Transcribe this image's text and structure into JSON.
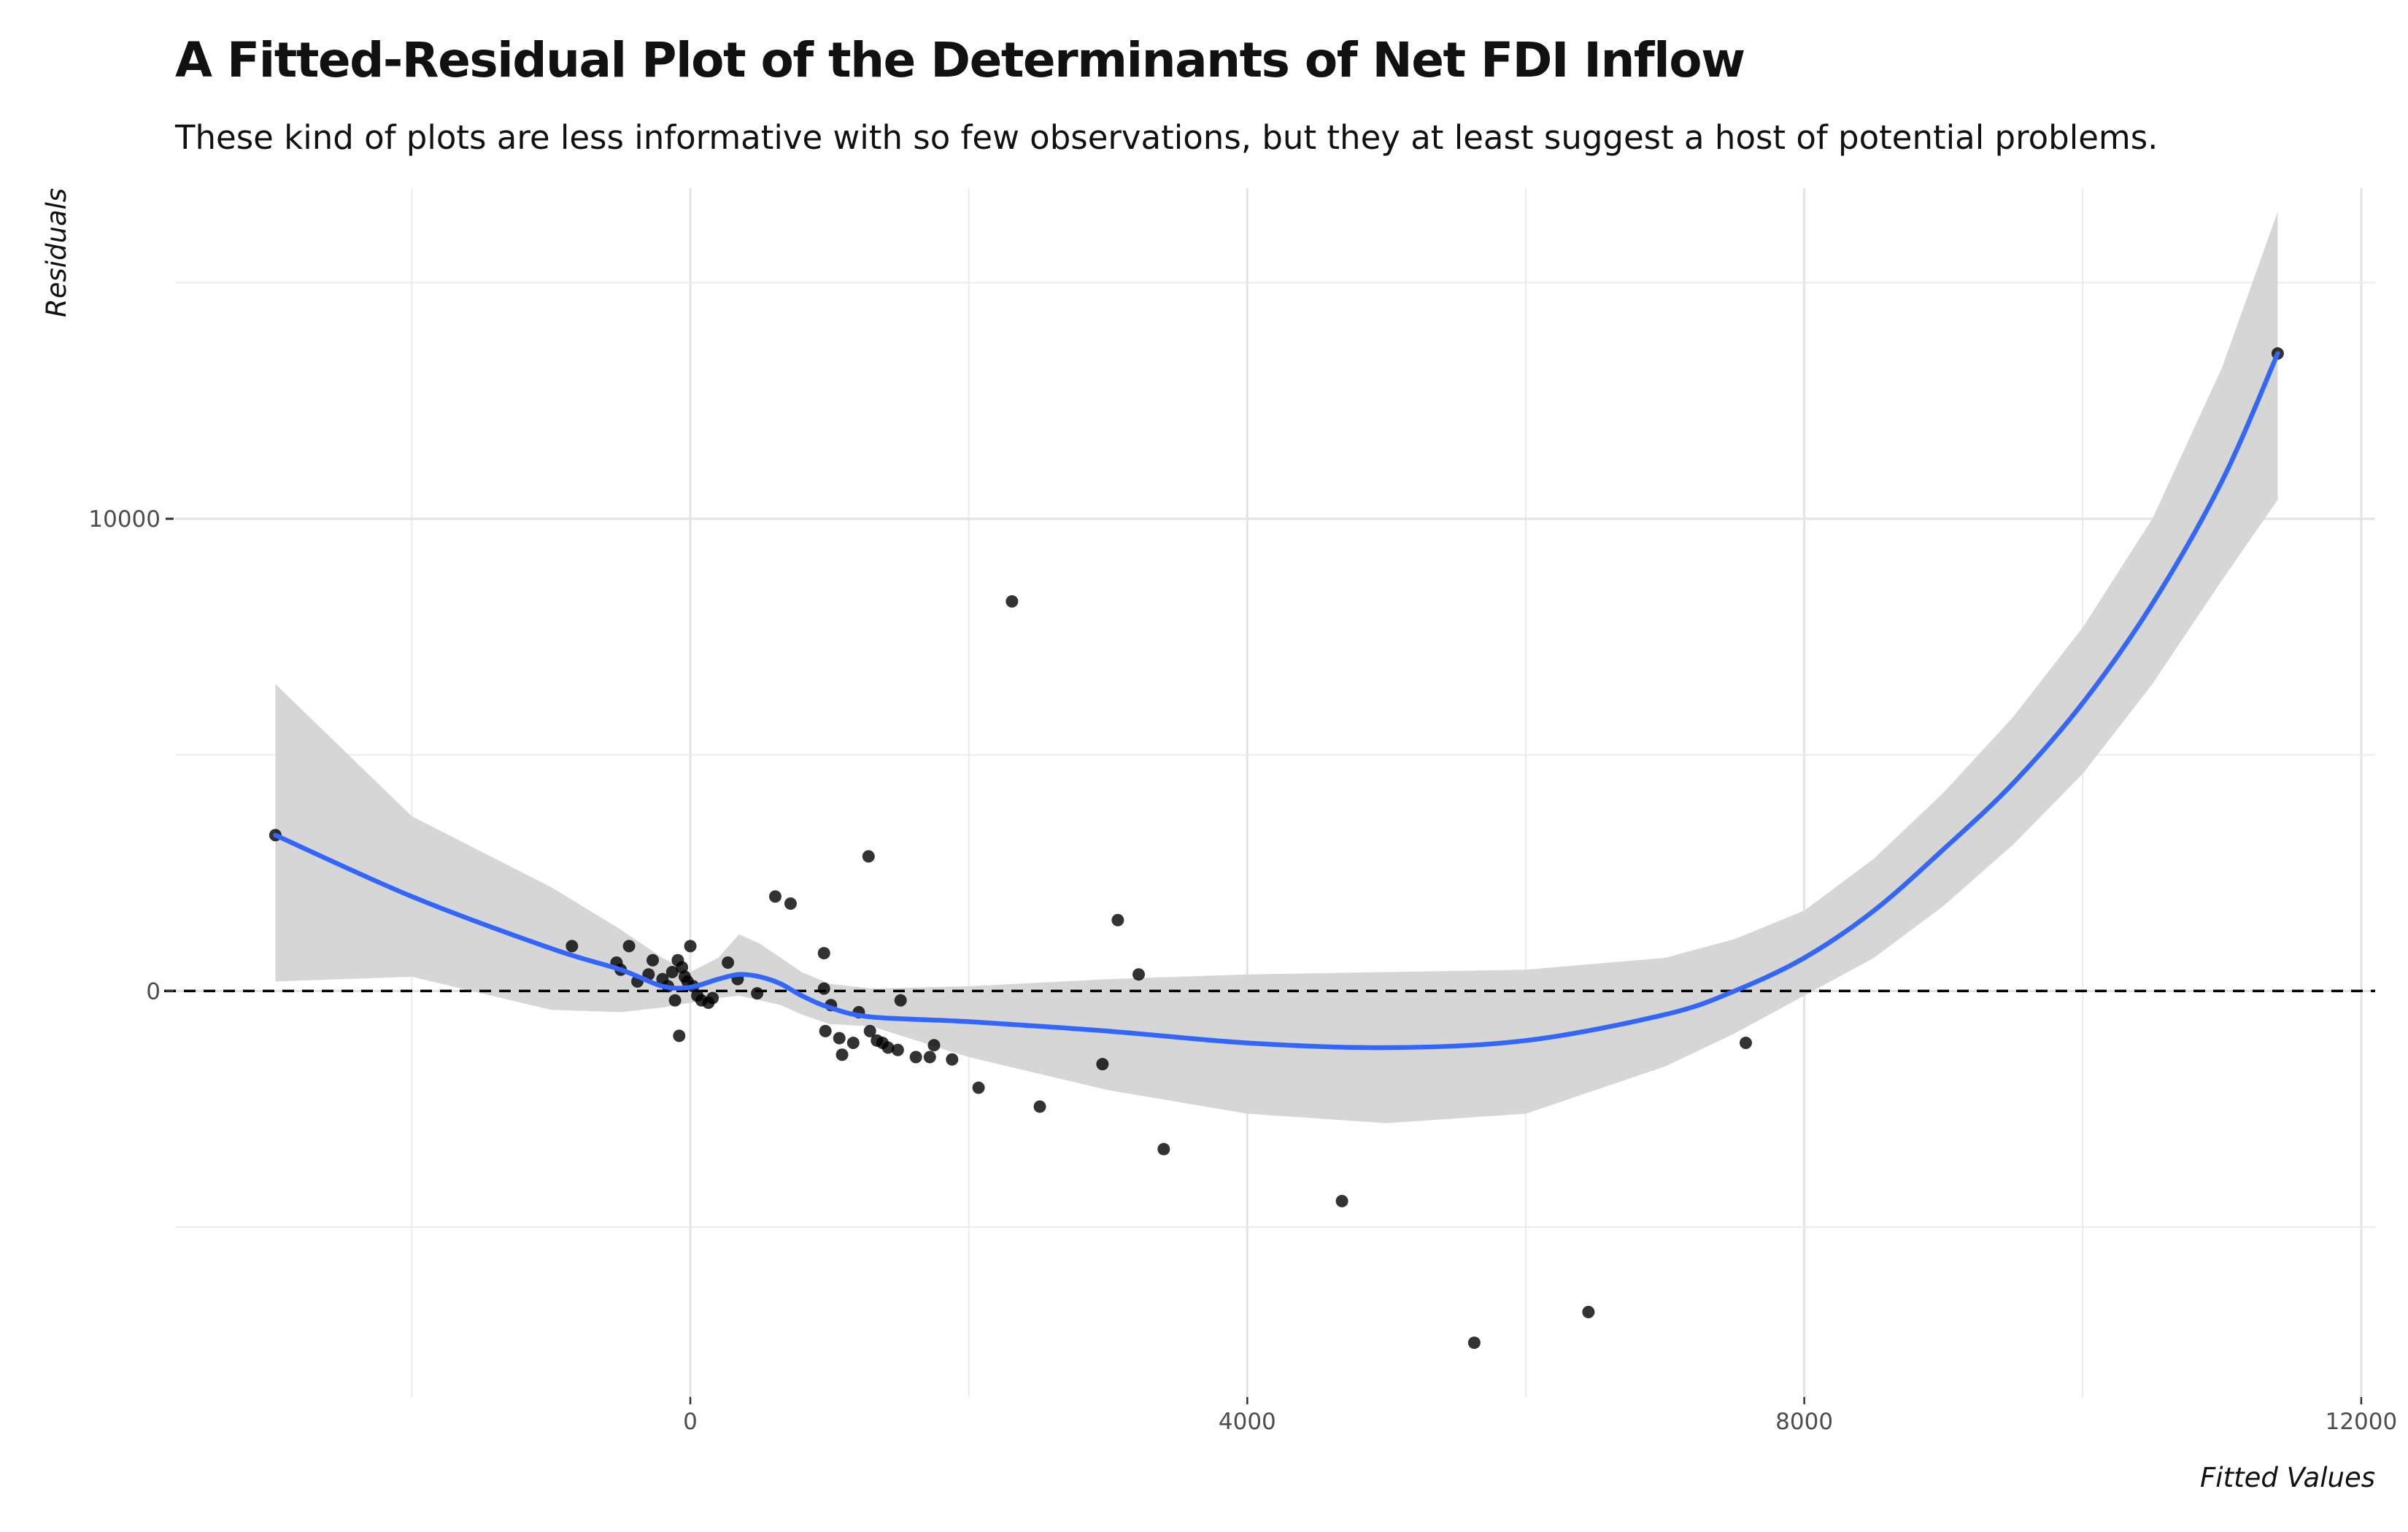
{
  "chart_data": {
    "type": "scatter",
    "title": "A Fitted-Residual Plot of the Determinants of Net FDI Inflow",
    "subtitle": "These kind of plots are less informative with so few observations, but they at least suggest a host of potential problems.",
    "xlabel": "Fitted Values",
    "ylabel": "Residuals",
    "xlim": [
      -3700,
      12100
    ],
    "ylim": [
      -8600,
      17000
    ],
    "x_ticks": [
      0,
      4000,
      8000,
      12000
    ],
    "x_tick_labels": [
      "0",
      "4000",
      "8000",
      "12000"
    ],
    "y_ticks": [
      0,
      10000
    ],
    "y_tick_labels": [
      "0",
      "10000"
    ],
    "x_minor_grid": [
      -2000,
      2000,
      6000,
      10000
    ],
    "y_minor_grid": [
      -5000,
      5000,
      15000
    ],
    "grid": true,
    "reference_line": {
      "y": 0,
      "style": "dashed",
      "color": "#000000"
    },
    "points": [
      {
        "x": -2980,
        "y": 3300
      },
      {
        "x": -850,
        "y": 950
      },
      {
        "x": -530,
        "y": 600
      },
      {
        "x": -500,
        "y": 450
      },
      {
        "x": -440,
        "y": 950
      },
      {
        "x": -380,
        "y": 200
      },
      {
        "x": -300,
        "y": 350
      },
      {
        "x": -270,
        "y": 650
      },
      {
        "x": -200,
        "y": 250
      },
      {
        "x": -160,
        "y": 100
      },
      {
        "x": -130,
        "y": 400
      },
      {
        "x": -110,
        "y": -200
      },
      {
        "x": -90,
        "y": 650
      },
      {
        "x": -80,
        "y": -950
      },
      {
        "x": -60,
        "y": 500
      },
      {
        "x": -40,
        "y": 300
      },
      {
        "x": -20,
        "y": 200
      },
      {
        "x": 0,
        "y": 950
      },
      {
        "x": 20,
        "y": 100
      },
      {
        "x": 50,
        "y": -100
      },
      {
        "x": 80,
        "y": -200
      },
      {
        "x": 130,
        "y": -250
      },
      {
        "x": 160,
        "y": -150
      },
      {
        "x": 270,
        "y": 600
      },
      {
        "x": 340,
        "y": 250
      },
      {
        "x": 480,
        "y": -50
      },
      {
        "x": 610,
        "y": 2000
      },
      {
        "x": 720,
        "y": 1850
      },
      {
        "x": 960,
        "y": 800
      },
      {
        "x": 960,
        "y": 50
      },
      {
        "x": 970,
        "y": -850
      },
      {
        "x": 1010,
        "y": -300
      },
      {
        "x": 1070,
        "y": -1000
      },
      {
        "x": 1090,
        "y": -1350
      },
      {
        "x": 1170,
        "y": -1100
      },
      {
        "x": 1210,
        "y": -450
      },
      {
        "x": 1280,
        "y": 2850
      },
      {
        "x": 1290,
        "y": -850
      },
      {
        "x": 1340,
        "y": -1050
      },
      {
        "x": 1380,
        "y": -1100
      },
      {
        "x": 1420,
        "y": -1200
      },
      {
        "x": 1490,
        "y": -1250
      },
      {
        "x": 1510,
        "y": -200
      },
      {
        "x": 1620,
        "y": -1400
      },
      {
        "x": 1720,
        "y": -1400
      },
      {
        "x": 1750,
        "y": -1150
      },
      {
        "x": 1880,
        "y": -1450
      },
      {
        "x": 2070,
        "y": -2050
      },
      {
        "x": 2310,
        "y": 8250
      },
      {
        "x": 2510,
        "y": -2450
      },
      {
        "x": 2960,
        "y": -1550
      },
      {
        "x": 3070,
        "y": 1500
      },
      {
        "x": 3220,
        "y": 350
      },
      {
        "x": 3400,
        "y": -3350
      },
      {
        "x": 4680,
        "y": -4450
      },
      {
        "x": 5630,
        "y": -7450
      },
      {
        "x": 6450,
        "y": -6800
      },
      {
        "x": 7580,
        "y": -1100
      },
      {
        "x": 11400,
        "y": 13500
      }
    ],
    "smooth": {
      "color": "#3366ff",
      "band_color": "#d6d6d6",
      "x": [
        -2980,
        -2000,
        -1000,
        -500,
        -200,
        0,
        200,
        350,
        500,
        650,
        800,
        1000,
        1300,
        2000,
        3000,
        4000,
        5000,
        6000,
        7000,
        7500,
        8000,
        8500,
        9000,
        9500,
        10000,
        10500,
        11000,
        11400
      ],
      "y": [
        3300,
        2000,
        900,
        450,
        100,
        80,
        250,
        350,
        300,
        150,
        -100,
        -350,
        -550,
        -650,
        -850,
        -1100,
        -1200,
        -1050,
        -500,
        0,
        700,
        1700,
        3000,
        4400,
        6100,
        8200,
        10800,
        13500
      ],
      "lower": [
        200,
        300,
        -400,
        -450,
        -350,
        -250,
        -150,
        -100,
        -200,
        -300,
        -500,
        -700,
        -750,
        -1400,
        -2100,
        -2600,
        -2800,
        -2600,
        -1600,
        -900,
        -100,
        700,
        1800,
        3100,
        4600,
        6500,
        8700,
        10400
      ],
      "upper": [
        6500,
        3700,
        2200,
        1300,
        700,
        400,
        700,
        1200,
        1000,
        700,
        400,
        150,
        50,
        100,
        250,
        350,
        400,
        450,
        700,
        1100,
        1700,
        2800,
        4200,
        5800,
        7700,
        10000,
        13200,
        16500
      ]
    }
  }
}
